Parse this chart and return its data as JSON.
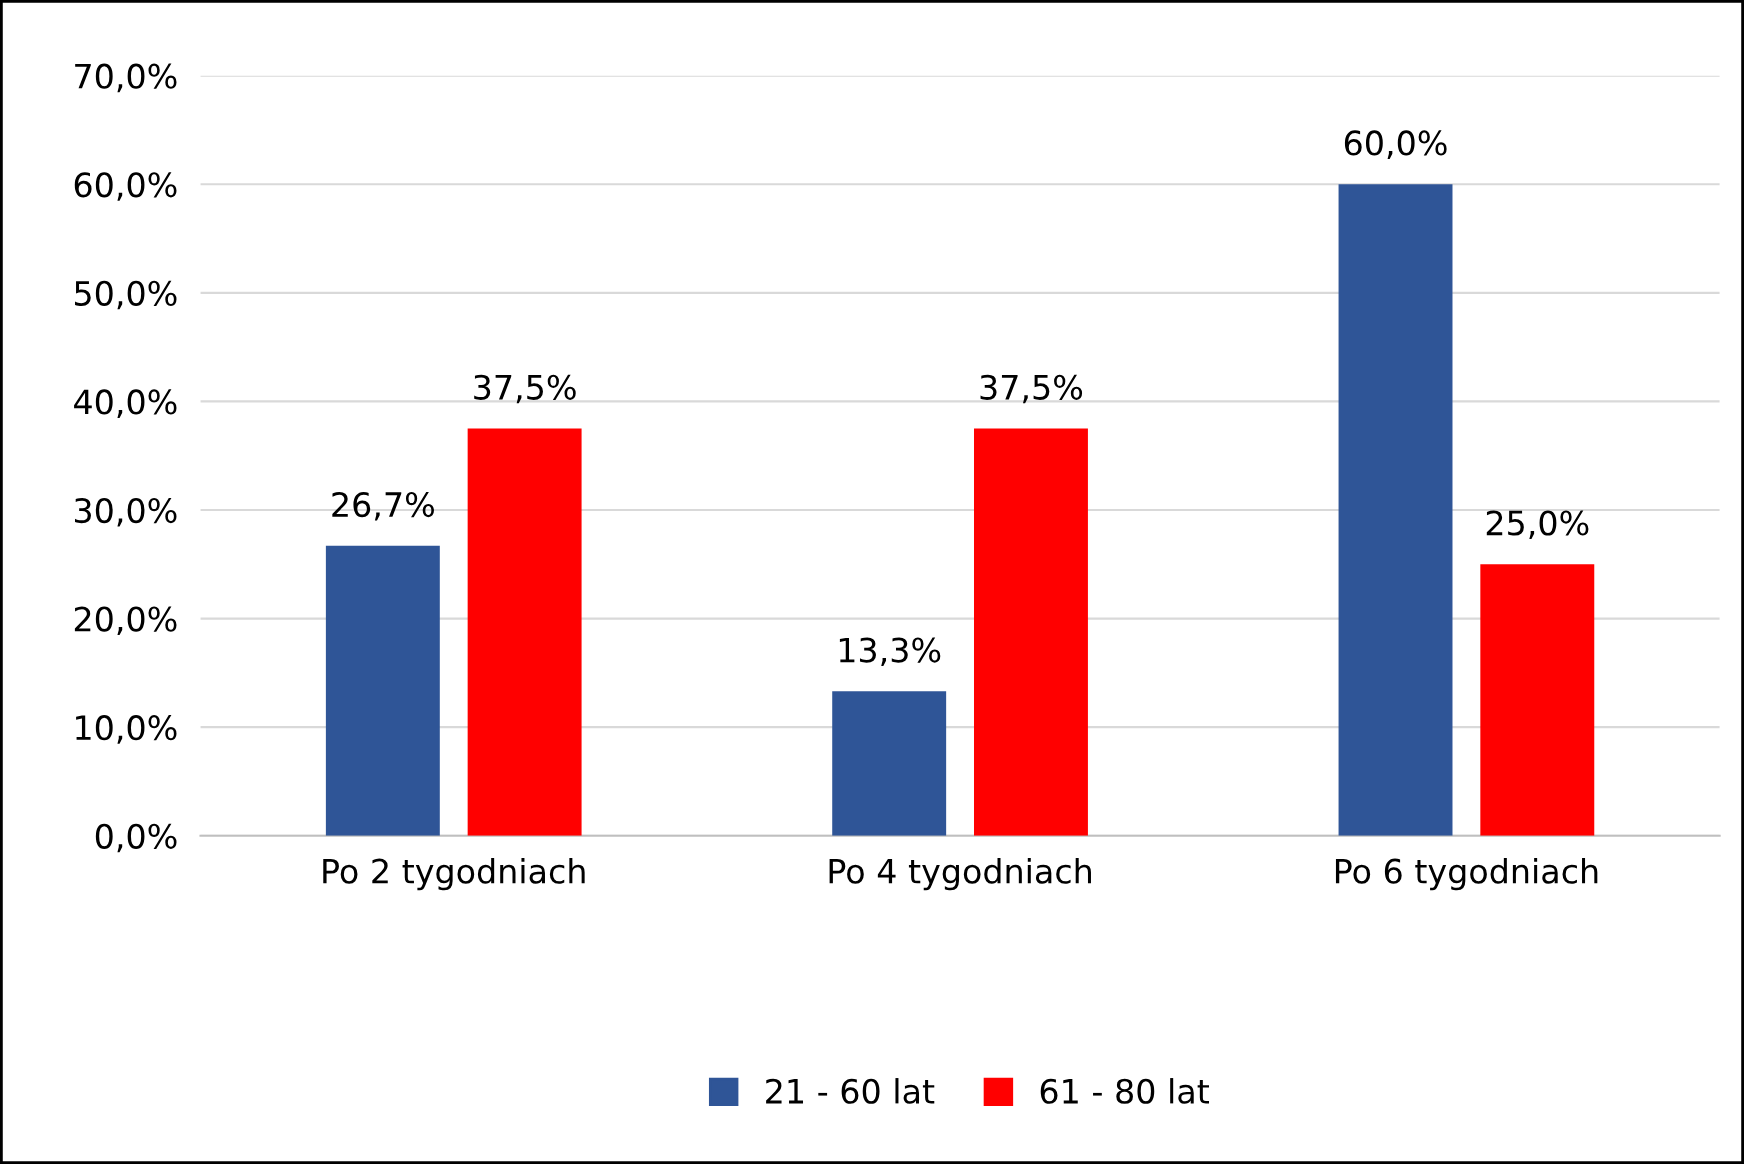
{
  "chart_data": {
    "type": "bar",
    "categories": [
      "Po 2 tygodniach",
      "Po 4 tygodniach",
      "Po 6 tygodniach"
    ],
    "series": [
      {
        "name": "21 - 60 lat",
        "color": "#2f5597",
        "values": [
          26.7,
          13.3,
          60.0
        ],
        "value_labels": [
          "26,7%",
          "13,3%",
          "60,0%"
        ]
      },
      {
        "name": "61 - 80 lat",
        "color": "#ff0000",
        "values": [
          37.5,
          37.5,
          25.0
        ],
        "value_labels": [
          "37,5%",
          "37,5%",
          "25,0%"
        ]
      }
    ],
    "ylim": [
      0,
      70
    ],
    "yticks": [
      {
        "value": 0,
        "label": "0,0%"
      },
      {
        "value": 10,
        "label": "10,0%"
      },
      {
        "value": 20,
        "label": "20,0%"
      },
      {
        "value": 30,
        "label": "30,0%"
      },
      {
        "value": 40,
        "label": "40,0%"
      },
      {
        "value": 50,
        "label": "50,0%"
      },
      {
        "value": 60,
        "label": "60,0%"
      },
      {
        "value": 70,
        "label": "70,0%"
      }
    ],
    "grid": "y",
    "legend": "bottom"
  }
}
